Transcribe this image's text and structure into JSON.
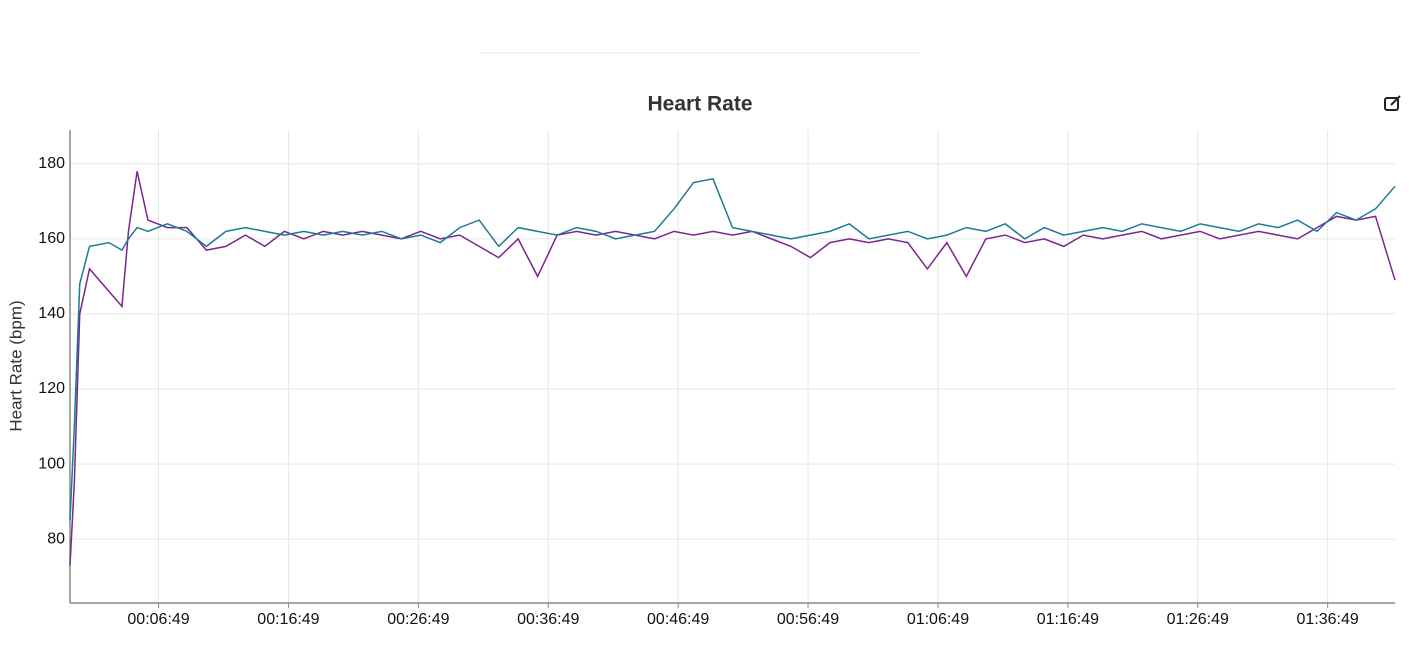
{
  "chart_data": {
    "type": "line",
    "title": "Heart Rate",
    "ylabel": "Heart Rate (bpm)",
    "x": [
      0,
      20,
      45,
      90,
      180,
      240,
      270,
      310,
      360,
      450,
      540,
      630,
      720,
      810,
      900,
      990,
      1080,
      1170,
      1260,
      1350,
      1440,
      1530,
      1620,
      1710,
      1800,
      1890,
      1980,
      2070,
      2160,
      2250,
      2340,
      2430,
      2520,
      2610,
      2700,
      2790,
      2880,
      2970,
      3060,
      3150,
      3240,
      3330,
      3420,
      3510,
      3600,
      3690,
      3780,
      3870,
      3960,
      4050,
      4140,
      4230,
      4320,
      4410,
      4500,
      4590,
      4680,
      4770,
      4860,
      4950,
      5040,
      5130,
      5220,
      5310,
      5400,
      5490,
      5580,
      5670,
      5760,
      5850,
      5940,
      6030,
      6120
    ],
    "series": [
      {
        "color": "#7b2590",
        "values": [
          73,
          95,
          140,
          152,
          146,
          142,
          162,
          178,
          165,
          163,
          163,
          157,
          158,
          161,
          158,
          162,
          160,
          162,
          161,
          162,
          161,
          160,
          162,
          160,
          161,
          158,
          155,
          160,
          150,
          161,
          162,
          161,
          162,
          161,
          160,
          162,
          161,
          162,
          161,
          162,
          160,
          158,
          155,
          159,
          160,
          159,
          160,
          159,
          152,
          159,
          150,
          160,
          161,
          159,
          160,
          158,
          161,
          160,
          161,
          162,
          160,
          161,
          162,
          160,
          161,
          162,
          161,
          160,
          163,
          166,
          165,
          166,
          149
        ]
      },
      {
        "color": "#1d7a94",
        "values": [
          85,
          110,
          148,
          158,
          159,
          157,
          160,
          163,
          162,
          164,
          162,
          158,
          162,
          163,
          162,
          161,
          162,
          161,
          162,
          161,
          162,
          160,
          161,
          159,
          163,
          165,
          158,
          163,
          162,
          161,
          163,
          162,
          160,
          161,
          162,
          168,
          175,
          176,
          163,
          162,
          161,
          160,
          161,
          162,
          164,
          160,
          161,
          162,
          160,
          161,
          163,
          162,
          164,
          160,
          163,
          161,
          162,
          163,
          162,
          164,
          163,
          162,
          164,
          163,
          162,
          164,
          163,
          165,
          162,
          167,
          165,
          168,
          174
        ]
      }
    ],
    "xlim": [
      0,
      6120
    ],
    "ylim": [
      63,
      189
    ],
    "xticks": [
      {
        "value": 409,
        "label": "00:06:49"
      },
      {
        "value": 1009,
        "label": "00:16:49"
      },
      {
        "value": 1609,
        "label": "00:26:49"
      },
      {
        "value": 2209,
        "label": "00:36:49"
      },
      {
        "value": 2809,
        "label": "00:46:49"
      },
      {
        "value": 3409,
        "label": "00:56:49"
      },
      {
        "value": 4009,
        "label": "01:06:49"
      },
      {
        "value": 4609,
        "label": "01:16:49"
      },
      {
        "value": 5209,
        "label": "01:26:49"
      },
      {
        "value": 5809,
        "label": "01:36:49"
      }
    ],
    "yticks": [
      80,
      100,
      120,
      140,
      160,
      180
    ],
    "grid": true
  }
}
